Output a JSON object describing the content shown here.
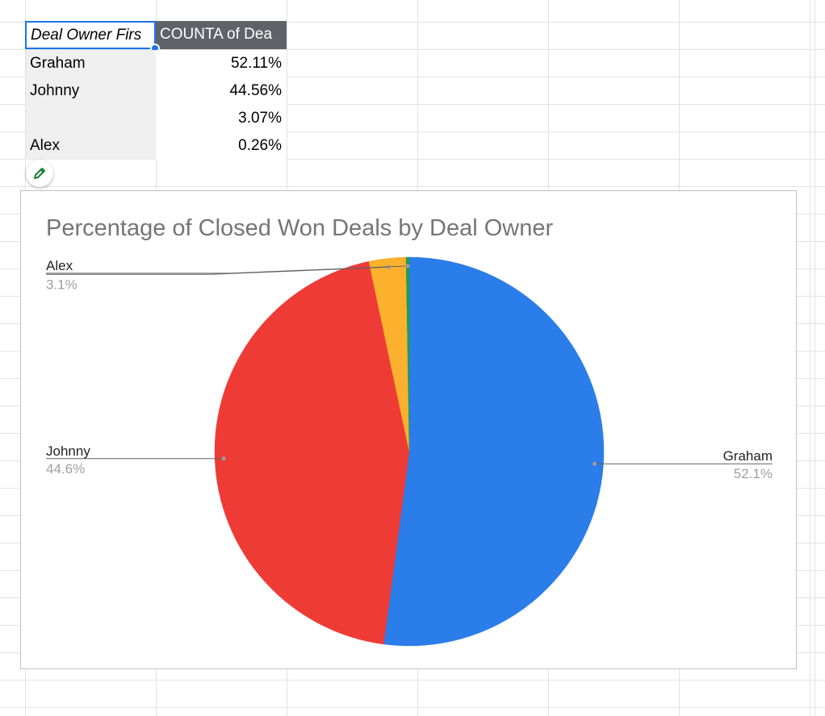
{
  "pivot": {
    "headers": [
      "Deal Owner Firs",
      "COUNTA of Dea"
    ],
    "rows": [
      {
        "name": "Graham",
        "value": "52.11%"
      },
      {
        "name": "Johnny",
        "value": "44.56%"
      },
      {
        "name": "",
        "value": "3.07%"
      },
      {
        "name": "Alex",
        "value": "0.26%"
      }
    ]
  },
  "icons": {
    "edit": "pencil-icon"
  },
  "colors": {
    "selection": "#1a73e8",
    "header_bg": "#5f6368",
    "pencil": "#188038"
  },
  "chart_data": {
    "type": "pie",
    "title": "Percentage of Closed Won Deals by Deal Owner",
    "slices": [
      {
        "label": "Graham",
        "value": 52.11,
        "display": "52.1%",
        "color": "#2b7de9"
      },
      {
        "label": "Johnny",
        "value": 44.56,
        "display": "44.6%",
        "color": "#ef3b36"
      },
      {
        "label": "",
        "value": 3.07,
        "display": "3.1%",
        "color": "#fbb12d"
      },
      {
        "label": "Alex",
        "value": 0.26,
        "display": "",
        "color": "#1f9d4f"
      }
    ],
    "start": "12 o'clock",
    "direction": "clockwise",
    "legend": "none",
    "labels": "outside with leader lines"
  }
}
